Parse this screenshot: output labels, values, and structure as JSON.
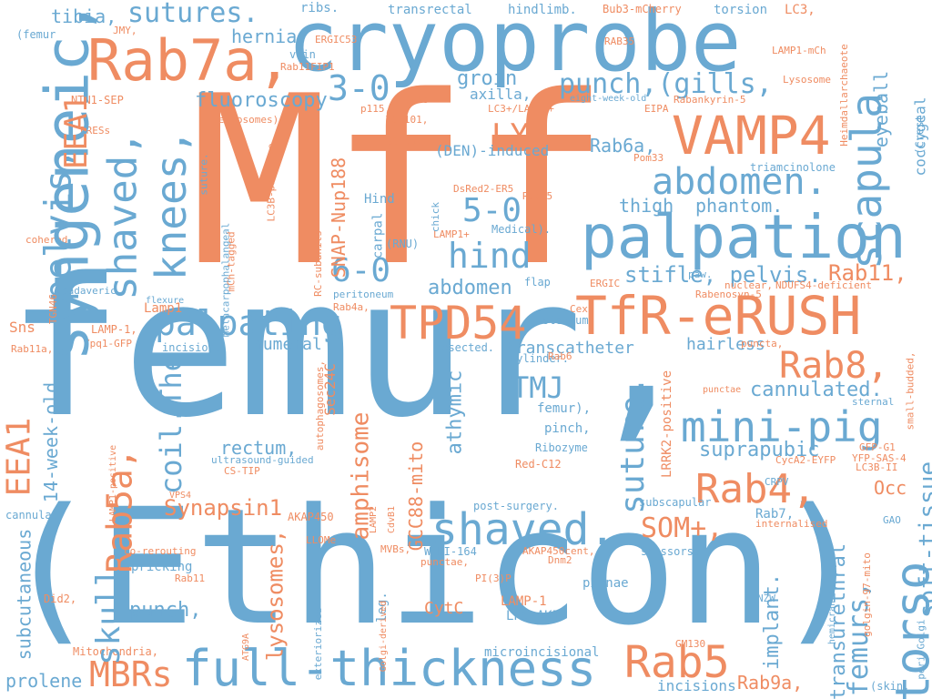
{
  "colors": {
    "blue": "#6aa9d2",
    "orange": "#ef8c62"
  },
  "words": [
    {
      "text": "Mff",
      "color": "orange",
      "rotation": 0
    },
    {
      "text": "femur,",
      "color": "blue",
      "rotation": 0
    },
    {
      "text": "(Ethicon)",
      "color": "blue",
      "rotation": 0
    },
    {
      "text": "cryoprobe",
      "color": "blue",
      "rotation": 0
    },
    {
      "text": "Rab7a,",
      "color": "orange",
      "rotation": 0
    },
    {
      "text": "VAMP4",
      "color": "orange",
      "rotation": 0
    },
    {
      "text": "palpation",
      "color": "blue",
      "rotation": 0
    },
    {
      "text": "TfR-eRUSH",
      "color": "orange",
      "rotation": 0
    },
    {
      "text": "TPD54",
      "color": "orange",
      "rotation": 0
    },
    {
      "text": "full-thickness",
      "color": "blue",
      "rotation": 0
    },
    {
      "text": "syngeneic,",
      "color": "blue",
      "rotation": -90
    },
    {
      "text": "scapula",
      "color": "blue",
      "rotation": -90
    },
    {
      "text": "torso",
      "color": "blue",
      "rotation": -90
    },
    {
      "text": "knees,",
      "color": "blue",
      "rotation": -90
    },
    {
      "text": "shaved,",
      "color": "blue",
      "rotation": -90
    },
    {
      "text": "pelvis,",
      "color": "blue",
      "rotation": -90
    },
    {
      "text": "shaved.",
      "color": "blue",
      "rotation": 0
    },
    {
      "text": "mini-pig",
      "color": "blue",
      "rotation": 0
    },
    {
      "text": "abdomen.",
      "color": "blue",
      "rotation": 0
    },
    {
      "text": "palpating",
      "color": "blue",
      "rotation": 0
    },
    {
      "text": "Rab5",
      "color": "orange",
      "rotation": 0
    },
    {
      "text": "Rab4,",
      "color": "orange",
      "rotation": 0
    },
    {
      "text": "Rab8,",
      "color": "orange",
      "rotation": 0
    },
    {
      "text": "MBRs",
      "color": "orange",
      "rotation": 0
    },
    {
      "text": "sutures.",
      "color": "blue",
      "rotation": 0
    },
    {
      "text": "3-0",
      "color": "blue",
      "rotation": 0
    },
    {
      "text": "5-0",
      "color": "blue",
      "rotation": 0
    },
    {
      "text": "6-0",
      "color": "blue",
      "rotation": 0
    },
    {
      "text": "hind",
      "color": "blue",
      "rotation": 0
    },
    {
      "text": "punch,(gills,",
      "color": "blue",
      "rotation": 0
    },
    {
      "text": "TMJ",
      "color": "blue",
      "rotation": 0
    },
    {
      "text": "SOM+,",
      "color": "orange",
      "rotation": 0
    },
    {
      "text": "cannulated.",
      "color": "blue",
      "rotation": 0
    },
    {
      "text": "stifle, pelvis.",
      "color": "blue",
      "rotation": 0
    },
    {
      "text": "Rab11,",
      "color": "orange",
      "rotation": 0
    },
    {
      "text": "suture.",
      "color": "blue",
      "rotation": -90
    },
    {
      "text": "femurs,",
      "color": "blue",
      "rotation": -90
    },
    {
      "text": "Rab9a,",
      "color": "orange",
      "rotation": 0
    },
    {
      "text": "LYS",
      "color": "orange",
      "rotation": 0
    },
    {
      "text": "EEA1",
      "color": "orange",
      "rotation": -90
    },
    {
      "text": "EEA1",
      "color": "orange",
      "rotation": -90
    },
    {
      "text": "Rab5a,",
      "color": "orange",
      "rotation": -90
    },
    {
      "text": "skull.",
      "color": "blue",
      "rotation": -90
    },
    {
      "text": "coil.The",
      "color": "blue",
      "rotation": -90
    },
    {
      "text": "fluoroscopy",
      "color": "blue",
      "rotation": 0
    },
    {
      "text": "groin",
      "color": "blue",
      "rotation": 0
    },
    {
      "text": "abdomen",
      "color": "blue",
      "rotation": 0
    },
    {
      "text": "phantom.",
      "color": "blue",
      "rotation": 0
    },
    {
      "text": "thigh",
      "color": "blue",
      "rotation": 0
    },
    {
      "text": "tibia,",
      "color": "blue",
      "rotation": 0
    },
    {
      "text": "hernia",
      "color": "blue",
      "rotation": 0
    },
    {
      "text": "Rab6a,",
      "color": "blue",
      "rotation": 0
    },
    {
      "text": "(DEN)-induced",
      "color": "blue",
      "rotation": 0
    },
    {
      "text": "axilla,",
      "color": "blue",
      "rotation": 0
    },
    {
      "text": "rectum,",
      "color": "blue",
      "rotation": 0
    },
    {
      "text": "humeral",
      "color": "blue",
      "rotation": 0
    },
    {
      "text": "hairless",
      "color": "blue",
      "rotation": 0
    },
    {
      "text": "suprapubic",
      "color": "blue",
      "rotation": 0
    },
    {
      "text": "transcatheter",
      "color": "blue",
      "rotation": 0
    },
    {
      "text": "Synapsin1",
      "color": "orange",
      "rotation": 0
    },
    {
      "text": "punch,",
      "color": "blue",
      "rotation": 0
    },
    {
      "text": "pricking",
      "color": "blue",
      "rotation": 0
    },
    {
      "text": "prolene",
      "color": "blue",
      "rotation": 0
    },
    {
      "text": "incisions",
      "color": "blue",
      "rotation": 0
    },
    {
      "text": "Occ",
      "color": "orange",
      "rotation": 0
    },
    {
      "text": "CytC",
      "color": "orange",
      "rotation": 0
    },
    {
      "text": "LAMP-1",
      "color": "orange",
      "rotation": 0
    },
    {
      "text": "LPS-AKI",
      "color": "blue",
      "rotation": 0
    },
    {
      "text": "Sns",
      "color": "orange",
      "rotation": 0
    },
    {
      "text": "Lamp1",
      "color": "orange",
      "rotation": 0
    },
    {
      "text": "athymic",
      "color": "blue",
      "rotation": -90
    },
    {
      "text": "amphisome",
      "color": "orange",
      "rotation": -90
    },
    {
      "text": "GCC88-mito",
      "color": "orange",
      "rotation": -90
    },
    {
      "text": "lysosomes,",
      "color": "orange",
      "rotation": -90
    },
    {
      "text": "SNAP-Nup188",
      "color": "orange",
      "rotation": -90
    },
    {
      "text": "14-week-old",
      "color": "blue",
      "rotation": -90
    },
    {
      "text": "subcutaneous",
      "color": "blue",
      "rotation": -90
    },
    {
      "text": "soft-tissue",
      "color": "blue",
      "rotation": -90
    },
    {
      "text": "coccygeal",
      "color": "blue",
      "rotation": -90
    },
    {
      "text": "eyeball",
      "color": "blue",
      "rotation": -90
    },
    {
      "text": "implant.",
      "color": "blue",
      "rotation": -90
    },
    {
      "text": "transurethral",
      "color": "blue",
      "rotation": -90
    },
    {
      "text": "Sec24C",
      "color": "orange",
      "rotation": -90
    },
    {
      "text": "LRRK2-positive",
      "color": "orange",
      "rotation": -90
    },
    {
      "text": "femur),",
      "color": "blue",
      "rotation": 0
    },
    {
      "text": "pinch,",
      "color": "blue",
      "rotation": 0
    },
    {
      "text": "Ribozyme",
      "color": "blue",
      "rotation": 0
    },
    {
      "text": "Red-C12",
      "color": "orange",
      "rotation": 0
    },
    {
      "text": "pinnae",
      "color": "blue",
      "rotation": 0
    },
    {
      "text": "scissors.",
      "color": "blue",
      "rotation": 0
    },
    {
      "text": "Rab7,",
      "color": "blue",
      "rotation": 0
    },
    {
      "text": "subscapular",
      "color": "blue",
      "rotation": 0
    },
    {
      "text": "post-surgery.",
      "color": "blue",
      "rotation": 0
    },
    {
      "text": "microincisional",
      "color": "blue",
      "rotation": 0
    },
    {
      "text": "AKAP450",
      "color": "orange",
      "rotation": 0
    },
    {
      "text": "AKAP450cent,",
      "color": "orange",
      "rotation": 0
    },
    {
      "text": "WEHI-164",
      "color": "blue",
      "rotation": 0
    },
    {
      "text": "Mitochondria,",
      "color": "orange",
      "rotation": 0
    },
    {
      "text": "cannula.",
      "color": "blue",
      "rotation": 0
    },
    {
      "text": "co-rerouting",
      "color": "orange",
      "rotation": 0
    },
    {
      "text": "Rab11",
      "color": "orange",
      "rotation": 0
    },
    {
      "text": "Did2,",
      "color": "orange",
      "rotation": 0
    },
    {
      "text": "MVBs,",
      "color": "orange",
      "rotation": 0
    },
    {
      "text": "punctae,",
      "color": "orange",
      "rotation": 0
    },
    {
      "text": "PI(3)P",
      "color": "orange",
      "rotation": 0
    },
    {
      "text": "Dnm2",
      "color": "orange",
      "rotation": 0
    },
    {
      "text": "LLOMe",
      "color": "orange",
      "rotation": 0
    },
    {
      "text": "VPS4",
      "color": "orange",
      "rotation": 0
    },
    {
      "text": "ultrasound-guided",
      "color": "blue",
      "rotation": 0
    },
    {
      "text": "CS-TIP",
      "color": "orange",
      "rotation": 0
    },
    {
      "text": "LAMP-1,",
      "color": "orange",
      "rotation": 0
    },
    {
      "text": "Ypq1-GFP",
      "color": "orange",
      "rotation": 0
    },
    {
      "text": "incision.",
      "color": "blue",
      "rotation": 0
    },
    {
      "text": "Rab11a,",
      "color": "orange",
      "rotation": 0
    },
    {
      "text": "cadaveric",
      "color": "blue",
      "rotation": 0
    },
    {
      "text": "flexure",
      "color": "blue",
      "rotation": 0
    },
    {
      "text": "resected.",
      "color": "blue",
      "rotation": 0
    },
    {
      "text": "cylinder.",
      "color": "blue",
      "rotation": 0
    },
    {
      "text": "sternum",
      "color": "blue",
      "rotation": 0
    },
    {
      "text": "Cex1",
      "color": "orange",
      "rotation": 0
    },
    {
      "text": "flap",
      "color": "blue",
      "rotation": 0
    },
    {
      "text": "ERGIC",
      "color": "orange",
      "rotation": 0
    },
    {
      "text": "Rabenosyn-5",
      "color": "orange",
      "rotation": 0
    },
    {
      "text": "nuclear,",
      "color": "orange",
      "rotation": 0
    },
    {
      "text": "NDUFS4-deficient",
      "color": "orange",
      "rotation": 0
    },
    {
      "text": "paw.",
      "color": "blue",
      "rotation": 0
    },
    {
      "text": "LC3B-II",
      "color": "orange",
      "rotation": 0
    },
    {
      "text": "punctae",
      "color": "orange",
      "rotation": 0
    },
    {
      "text": "puncta,",
      "color": "orange",
      "rotation": 0
    },
    {
      "text": "sternal",
      "color": "blue",
      "rotation": 0
    },
    {
      "text": "GFP-G1",
      "color": "orange",
      "rotation": 0
    },
    {
      "text": "YFP-SAS-4",
      "color": "orange",
      "rotation": 0
    },
    {
      "text": "CycA2-EYFP",
      "color": "orange",
      "rotation": 0
    },
    {
      "text": "CRPV",
      "color": "blue",
      "rotation": 0
    },
    {
      "text": "GAO",
      "color": "blue",
      "rotation": 0
    },
    {
      "text": "internalised",
      "color": "orange",
      "rotation": 0
    },
    {
      "text": "NZW",
      "color": "blue",
      "rotation": 0
    },
    {
      "text": "GM130",
      "color": "orange",
      "rotation": 0
    },
    {
      "text": "(skin,",
      "color": "blue",
      "rotation": 0
    },
    {
      "text": "transrectal",
      "color": "blue",
      "rotation": 0
    },
    {
      "text": "hindlimb.",
      "color": "blue",
      "rotation": 0
    },
    {
      "text": "Bub3-mCherry",
      "color": "orange",
      "rotation": 0
    },
    {
      "text": "torsion",
      "color": "blue",
      "rotation": 0
    },
    {
      "text": "LC3,",
      "color": "orange",
      "rotation": 0
    },
    {
      "text": "ribs.",
      "color": "blue",
      "rotation": 0
    },
    {
      "text": "(femur",
      "color": "blue",
      "rotation": 0
    },
    {
      "text": "JMY,",
      "color": "orange",
      "rotation": 0
    },
    {
      "text": "ERGIC53",
      "color": "orange",
      "rotation": 0
    },
    {
      "text": "RAB35",
      "color": "orange",
      "rotation": 0
    },
    {
      "text": "LAMP1-mCh",
      "color": "orange",
      "rotation": 0
    },
    {
      "text": "vein",
      "color": "blue",
      "rotation": 0
    },
    {
      "text": "Rab11FIP1",
      "color": "orange",
      "rotation": 0
    },
    {
      "text": "NTN1-SEP",
      "color": "orange",
      "rotation": 0
    },
    {
      "text": "endosomes)",
      "color": "orange",
      "rotation": 0
    },
    {
      "text": "hDANs",
      "color": "orange",
      "rotation": 0
    },
    {
      "text": "LC3+/LAMP1+",
      "color": "orange",
      "rotation": 0
    },
    {
      "text": "p115,",
      "color": "orange",
      "rotation": 0
    },
    {
      "text": "EIPA",
      "color": "orange",
      "rotation": 0
    },
    {
      "text": "eight-week-old",
      "color": "blue",
      "rotation": 0
    },
    {
      "text": "Rabankyrin-5",
      "color": "orange",
      "rotation": 0
    },
    {
      "text": "Lysosome",
      "color": "orange",
      "rotation": 0
    },
    {
      "text": "TSG101,",
      "color": "orange",
      "rotation": 0
    },
    {
      "text": "TBC1D5,",
      "color": "orange",
      "rotation": 0
    },
    {
      "text": "ERESs",
      "color": "orange",
      "rotation": 0
    },
    {
      "text": "Pom33",
      "color": "orange",
      "rotation": 0
    },
    {
      "text": "triamcinolone",
      "color": "blue",
      "rotation": 0
    },
    {
      "text": "DsRed2-ER5",
      "color": "orange",
      "rotation": 0
    },
    {
      "text": "Rab35",
      "color": "orange",
      "rotation": 0
    },
    {
      "text": "Medical).",
      "color": "blue",
      "rotation": 0
    },
    {
      "text": "LAMP1+",
      "color": "orange",
      "rotation": 0
    },
    {
      "text": "Hind",
      "color": "blue",
      "rotation": 0
    },
    {
      "text": "(RNU)",
      "color": "blue",
      "rotation": 0
    },
    {
      "text": "peritoneum",
      "color": "blue",
      "rotation": 0
    },
    {
      "text": "Rab4a,",
      "color": "orange",
      "rotation": 0
    },
    {
      "text": "cohered",
      "color": "orange",
      "rotation": 0
    },
    {
      "text": "Rab6",
      "color": "orange",
      "rotation": 0
    },
    {
      "text": "metacarpophalangeal",
      "color": "blue",
      "rotation": -90
    },
    {
      "text": "suture.",
      "color": "blue",
      "rotation": -90
    },
    {
      "text": "LC3B-positive",
      "color": "orange",
      "rotation": -90
    },
    {
      "text": "mCh-tagged",
      "color": "orange",
      "rotation": -90
    },
    {
      "text": "RC-subunits",
      "color": "orange",
      "rotation": -90
    },
    {
      "text": "carpal",
      "color": "blue",
      "rotation": -90
    },
    {
      "text": "chick",
      "color": "blue",
      "rotation": -90
    },
    {
      "text": "TGN46",
      "color": "orange",
      "rotation": -90
    },
    {
      "text": "(Crest",
      "color": "blue",
      "rotation": -90
    },
    {
      "text": "Heimdallarchaeote",
      "color": "orange",
      "rotation": -90
    },
    {
      "text": "small-budded,",
      "color": "orange",
      "rotation": -90
    },
    {
      "text": "hemicraniectomy",
      "color": "blue",
      "rotation": -90
    },
    {
      "text": "golgin-97-mito",
      "color": "orange",
      "rotation": -90
    },
    {
      "text": "peri-Golgi",
      "color": "blue",
      "rotation": -90
    },
    {
      "text": "autophagosomes,",
      "color": "orange",
      "rotation": -90
    },
    {
      "text": "LAMP1-positive",
      "color": "orange",
      "rotation": -90
    },
    {
      "text": "LAMP2",
      "color": "orange",
      "rotation": -90
    },
    {
      "text": "CdvB1",
      "color": "orange",
      "rotation": -90
    },
    {
      "text": "leg.",
      "color": "blue",
      "rotation": -90
    },
    {
      "text": "exteriorized",
      "color": "blue",
      "rotation": -90
    },
    {
      "text": "Golgi-derived",
      "color": "orange",
      "rotation": -90
    },
    {
      "text": "ATG9A",
      "color": "orange",
      "rotation": -90
    }
  ]
}
